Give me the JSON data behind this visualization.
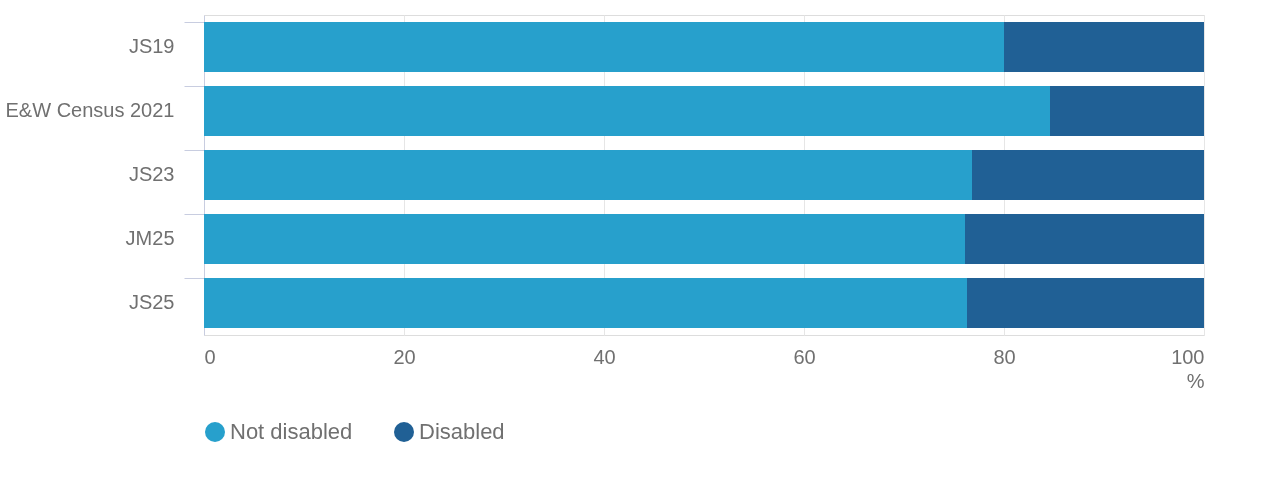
{
  "chart_data": {
    "type": "bar",
    "orientation": "horizontal",
    "stacked": true,
    "categories": [
      "JS19",
      "E&W Census 2021",
      "JS23",
      "JM25",
      "JS25"
    ],
    "series": [
      {
        "name": "Not disabled",
        "color": "#27a0cc",
        "values": [
          80.0,
          84.6,
          76.8,
          76.1,
          76.3
        ]
      },
      {
        "name": "Disabled",
        "color": "#206095",
        "values": [
          20.0,
          15.4,
          23.2,
          23.9,
          23.7
        ]
      }
    ],
    "xlim": [
      0,
      100
    ],
    "xticks": [
      0,
      20,
      40,
      60,
      80,
      100
    ],
    "xlabel": "%",
    "grid": "x",
    "legend": "bottom left"
  }
}
